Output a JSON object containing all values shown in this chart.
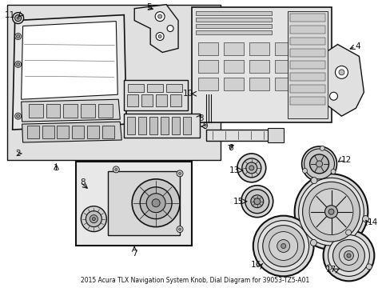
{
  "title": "2015 Acura TLX Navigation System Knob, Dial Diagram for 39053-TZ5-A01",
  "bg_color": "#ffffff",
  "box_bg": "#e0e0e0",
  "white": "#ffffff",
  "line_color": "#111111",
  "text_color": "#111111",
  "label_fontsize": 7.5,
  "title_fontsize": 5.5,
  "fig_bg": "#ffffff"
}
